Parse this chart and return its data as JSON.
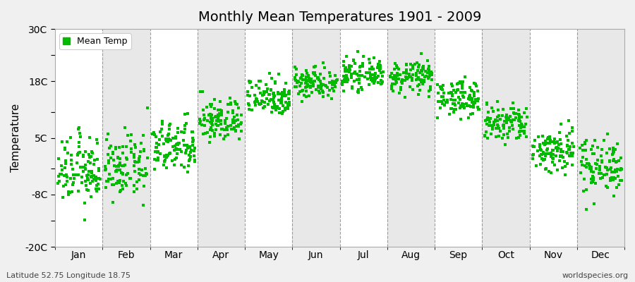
{
  "title": "Monthly Mean Temperatures 1901 - 2009",
  "ylabel": "Temperature",
  "xlabel_labels": [
    "Jan",
    "Feb",
    "Mar",
    "Apr",
    "May",
    "Jun",
    "Jul",
    "Aug",
    "Sep",
    "Oct",
    "Nov",
    "Dec"
  ],
  "ytick_labels": [
    "-20C",
    "",
    "-8C",
    "",
    "5C",
    "",
    "18C",
    "",
    "30C"
  ],
  "ytick_values": [
    -20,
    -14,
    -8,
    -2,
    5,
    11,
    18,
    24,
    30
  ],
  "ylim": [
    -20,
    30
  ],
  "figure_bg_color": "#f0f0f0",
  "plot_bg_color": "#ffffff",
  "band_color_even": "#ffffff",
  "band_color_odd": "#e8e8e8",
  "dot_color": "#00bb00",
  "dot_size": 5,
  "legend_label": "Mean Temp",
  "footer_left": "Latitude 52.75 Longitude 18.75",
  "footer_right": "worldspecies.org",
  "years": 109,
  "monthly_mean_temps": [
    -2.5,
    -1.8,
    2.8,
    9.0,
    14.5,
    17.8,
    19.5,
    19.0,
    14.2,
    8.2,
    2.2,
    -1.2
  ],
  "monthly_std_temps": [
    3.8,
    3.5,
    3.0,
    2.5,
    2.2,
    1.8,
    1.6,
    1.8,
    2.0,
    2.3,
    2.7,
    3.2
  ],
  "dashed_color": "#888888",
  "spine_color": "#aaaaaa"
}
